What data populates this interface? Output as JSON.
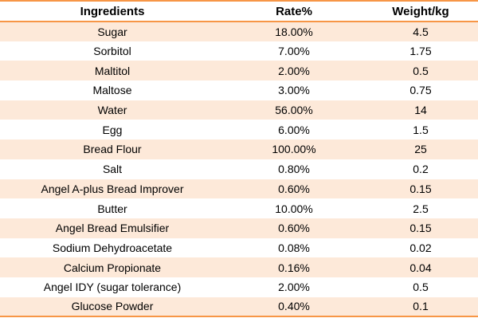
{
  "chart_data": {
    "type": "table",
    "columns": [
      "Ingredients",
      "Rate%",
      "Weight/kg"
    ],
    "rows": [
      [
        "Sugar",
        "18.00%",
        "4.5"
      ],
      [
        "Sorbitol",
        "7.00%",
        "1.75"
      ],
      [
        "Maltitol",
        "2.00%",
        "0.5"
      ],
      [
        "Maltose",
        "3.00%",
        "0.75"
      ],
      [
        "Water",
        "56.00%",
        "14"
      ],
      [
        "Egg",
        "6.00%",
        "1.5"
      ],
      [
        "Bread Flour",
        "100.00%",
        "25"
      ],
      [
        "Salt",
        "0.80%",
        "0.2"
      ],
      [
        "Angel A-plus Bread Improver",
        "0.60%",
        "0.15"
      ],
      [
        "Butter",
        "10.00%",
        "2.5"
      ],
      [
        "Angel Bread Emulsifier",
        "0.60%",
        "0.15"
      ],
      [
        "Sodium Dehydroacetate",
        "0.08%",
        "0.02"
      ],
      [
        "Calcium Propionate",
        "0.16%",
        "0.04"
      ],
      [
        "Angel IDY (sugar tolerance)",
        "2.00%",
        "0.5"
      ],
      [
        "Glucose Powder",
        "0.40%",
        "0.1"
      ]
    ],
    "layout": {
      "banding": "odd data rows shaded, starting with first row",
      "band_color": "#FDE9D9",
      "border_color": "#F79646",
      "text_color": "#000000",
      "header_background": "#FFFFFF",
      "alignment": "center",
      "header_bold": true
    }
  }
}
